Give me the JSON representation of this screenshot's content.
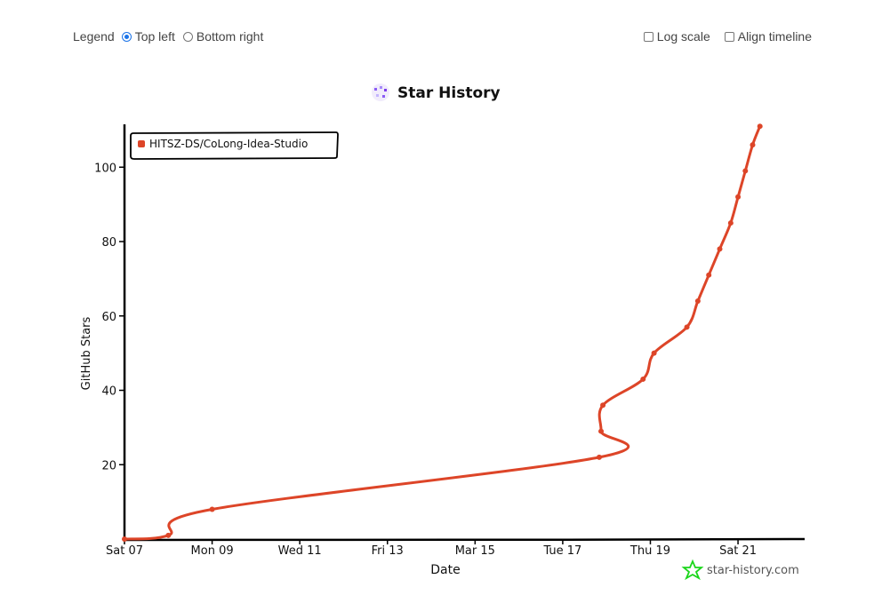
{
  "controls": {
    "legend_label": "Legend",
    "legend_options": [
      {
        "label": "Top left",
        "selected": true
      },
      {
        "label": "Bottom right",
        "selected": false
      }
    ],
    "log_scale_label": "Log scale",
    "log_scale_checked": false,
    "align_timeline_label": "Align timeline",
    "align_timeline_checked": false
  },
  "colors": {
    "series": "#dd4528",
    "axis": "#000000",
    "brand_star": "#1bd61b"
  },
  "watermark": "star-history.com",
  "chart_data": {
    "type": "line",
    "title": "Star History",
    "xlabel": "Date",
    "ylabel": "GitHub Stars",
    "ylim": [
      0,
      112
    ],
    "yticks": [
      20,
      40,
      60,
      80,
      100
    ],
    "xlim": [
      "2024-09-07",
      "2024-09-22T12:00"
    ],
    "xticks": [
      {
        "date": "2024-09-07",
        "label": "Sat 07"
      },
      {
        "date": "2024-09-09",
        "label": "Mon 09"
      },
      {
        "date": "2024-09-11",
        "label": "Wed 11"
      },
      {
        "date": "2024-09-13",
        "label": "Fri 13"
      },
      {
        "date": "2024-09-15",
        "label": "Mar 15"
      },
      {
        "date": "2024-09-17",
        "label": "Tue 17"
      },
      {
        "date": "2024-09-19",
        "label": "Thu 19"
      },
      {
        "date": "2024-09-21",
        "label": "Sat 21"
      }
    ],
    "legend_position": "top-left",
    "series": [
      {
        "name": "HITSZ-DS/CoLong-Idea-Studio",
        "points": [
          {
            "x": "2024-09-07T00:00",
            "y": 0
          },
          {
            "x": "2024-09-08T00:00",
            "y": 1
          },
          {
            "x": "2024-09-09T00:00",
            "y": 8
          },
          {
            "x": "2024-09-17T20:00",
            "y": 22
          },
          {
            "x": "2024-09-17T21:00",
            "y": 29
          },
          {
            "x": "2024-09-17T22:00",
            "y": 36
          },
          {
            "x": "2024-09-18T20:00",
            "y": 43
          },
          {
            "x": "2024-09-19T02:00",
            "y": 50
          },
          {
            "x": "2024-09-19T20:00",
            "y": 57
          },
          {
            "x": "2024-09-20T02:00",
            "y": 64
          },
          {
            "x": "2024-09-20T08:00",
            "y": 71
          },
          {
            "x": "2024-09-20T14:00",
            "y": 78
          },
          {
            "x": "2024-09-20T20:00",
            "y": 85
          },
          {
            "x": "2024-09-21T00:00",
            "y": 92
          },
          {
            "x": "2024-09-21T04:00",
            "y": 99
          },
          {
            "x": "2024-09-21T08:00",
            "y": 106
          },
          {
            "x": "2024-09-21T12:00",
            "y": 111
          }
        ]
      }
    ]
  }
}
